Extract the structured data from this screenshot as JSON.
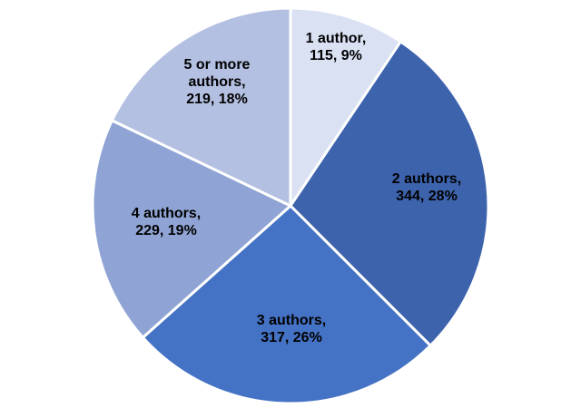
{
  "chart_data": {
    "type": "pie",
    "title": "",
    "start_angle_deg": 0,
    "direction": "clockwise",
    "slices": [
      {
        "name": "1 author",
        "value": 115,
        "percent": "9%",
        "color": "#D9E1F3",
        "label_lines": [
          "1 author,",
          "115, 9%"
        ]
      },
      {
        "name": "2 authors",
        "value": 344,
        "percent": "28%",
        "color": "#3D63AD",
        "label_lines": [
          "2 authors,",
          "344, 28%"
        ]
      },
      {
        "name": "3 authors",
        "value": 317,
        "percent": "26%",
        "color": "#4472C4",
        "label_lines": [
          "3 authors,",
          "317, 26%"
        ]
      },
      {
        "name": "4 authors",
        "value": 229,
        "percent": "19%",
        "color": "#8FA4D4",
        "label_lines": [
          "4 authors,",
          "229, 19%"
        ]
      },
      {
        "name": "5 or more authors",
        "value": 219,
        "percent": "18%",
        "color": "#B4C0E2",
        "label_lines": [
          "5 or more",
          "authors,",
          "219, 18%"
        ]
      }
    ],
    "legend": "none"
  }
}
